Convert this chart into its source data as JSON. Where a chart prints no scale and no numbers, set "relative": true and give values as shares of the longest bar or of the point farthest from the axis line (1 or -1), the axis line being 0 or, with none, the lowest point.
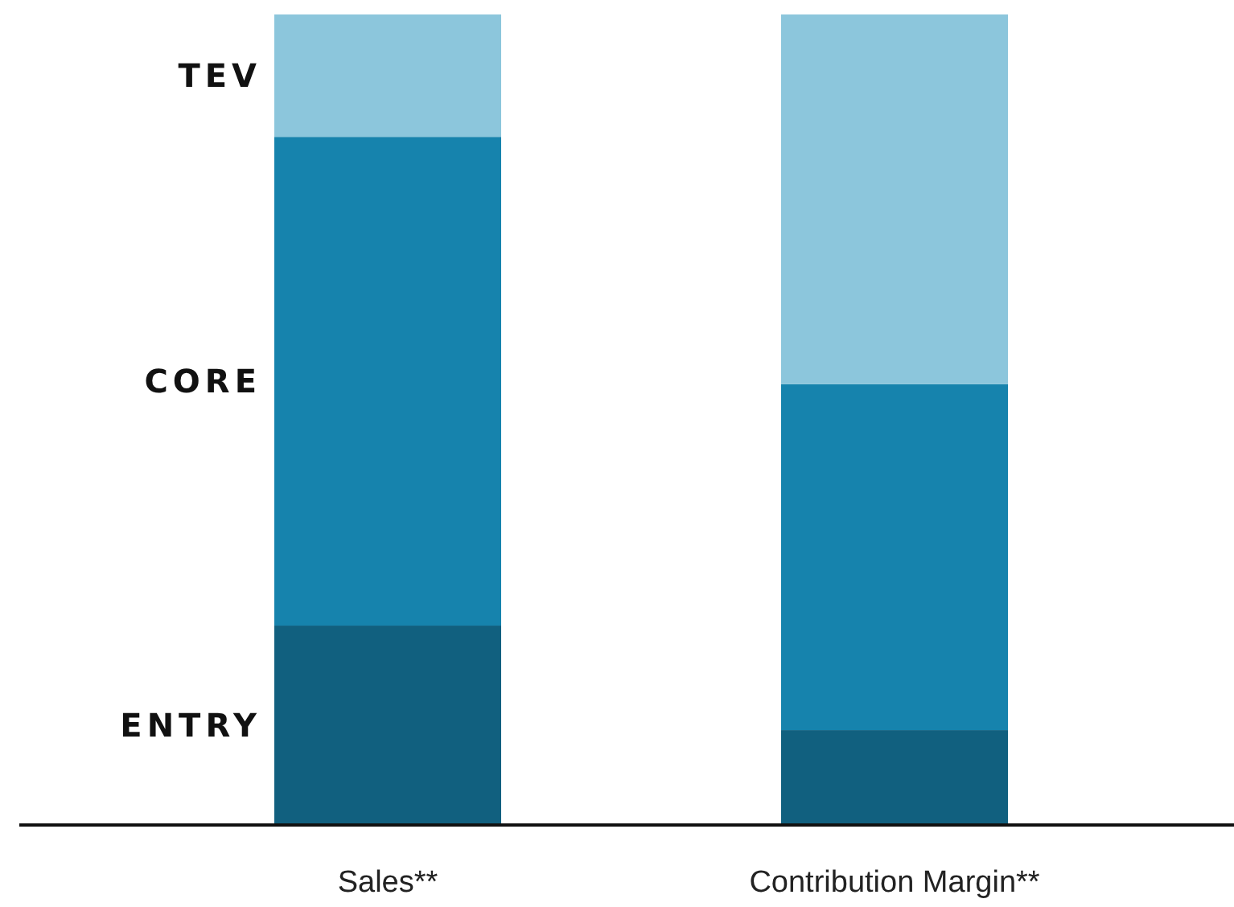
{
  "chart_data": {
    "type": "bar",
    "stacked": true,
    "relative": true,
    "categories": [
      "Sales**",
      "Contribution Margin**"
    ],
    "series": [
      {
        "name": "ENTRY",
        "color": "#11607f",
        "values": [
          0.246,
          0.117
        ]
      },
      {
        "name": "CORE",
        "color": "#1683ad",
        "values": [
          0.603,
          0.427
        ]
      },
      {
        "name": "TEV",
        "color": "#8cc6dc",
        "values": [
          0.151,
          0.456
        ]
      }
    ]
  }
}
